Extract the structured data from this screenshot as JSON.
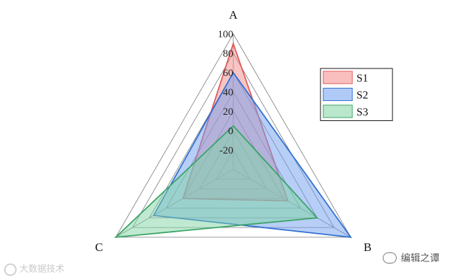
{
  "chart_data": {
    "type": "radar",
    "axes": [
      "A",
      "B",
      "C"
    ],
    "rlim": [
      -40,
      100
    ],
    "ticks": [
      -20,
      0,
      20,
      40,
      60,
      80,
      100
    ],
    "tick_labels": [
      "-20",
      "0",
      "20",
      "40",
      "60",
      "80",
      "100"
    ],
    "grid": true,
    "legend_position": "right",
    "series": [
      {
        "name": "S1",
        "values": [
          90,
          25,
          20
        ],
        "color": "#e05a5a",
        "fill": "#f48a8a"
      },
      {
        "name": "S2",
        "values": [
          60,
          100,
          55
        ],
        "color": "#2e6fd1",
        "fill": "#6f9ef0"
      },
      {
        "name": "S3",
        "values": [
          5,
          60,
          100
        ],
        "color": "#3aa366",
        "fill": "#7fd3a3"
      }
    ]
  },
  "watermarks": {
    "left": "大数据技术",
    "right": "编辑之谭"
  }
}
